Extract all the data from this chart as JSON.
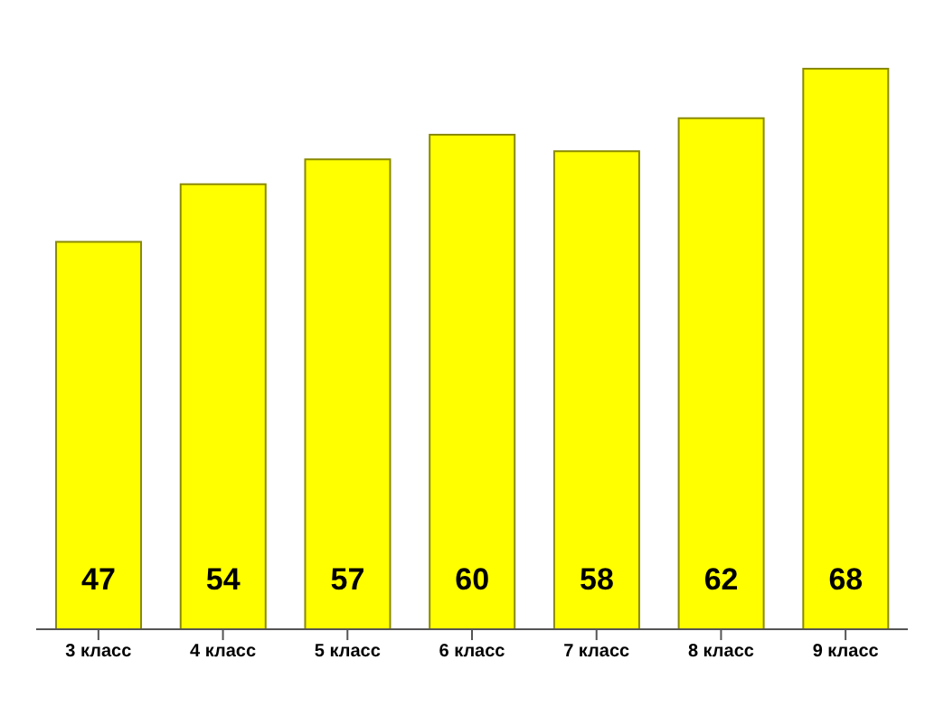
{
  "chart_data": {
    "type": "bar",
    "categories": [
      "3 класс",
      "4 класс",
      "5 класс",
      "6 класс",
      "7 класс",
      "8 класс",
      "9 класс"
    ],
    "values": [
      47,
      54,
      57,
      60,
      58,
      62,
      68
    ],
    "color": "#ffff00",
    "data_labels": true,
    "grid": false,
    "legend": false
  }
}
